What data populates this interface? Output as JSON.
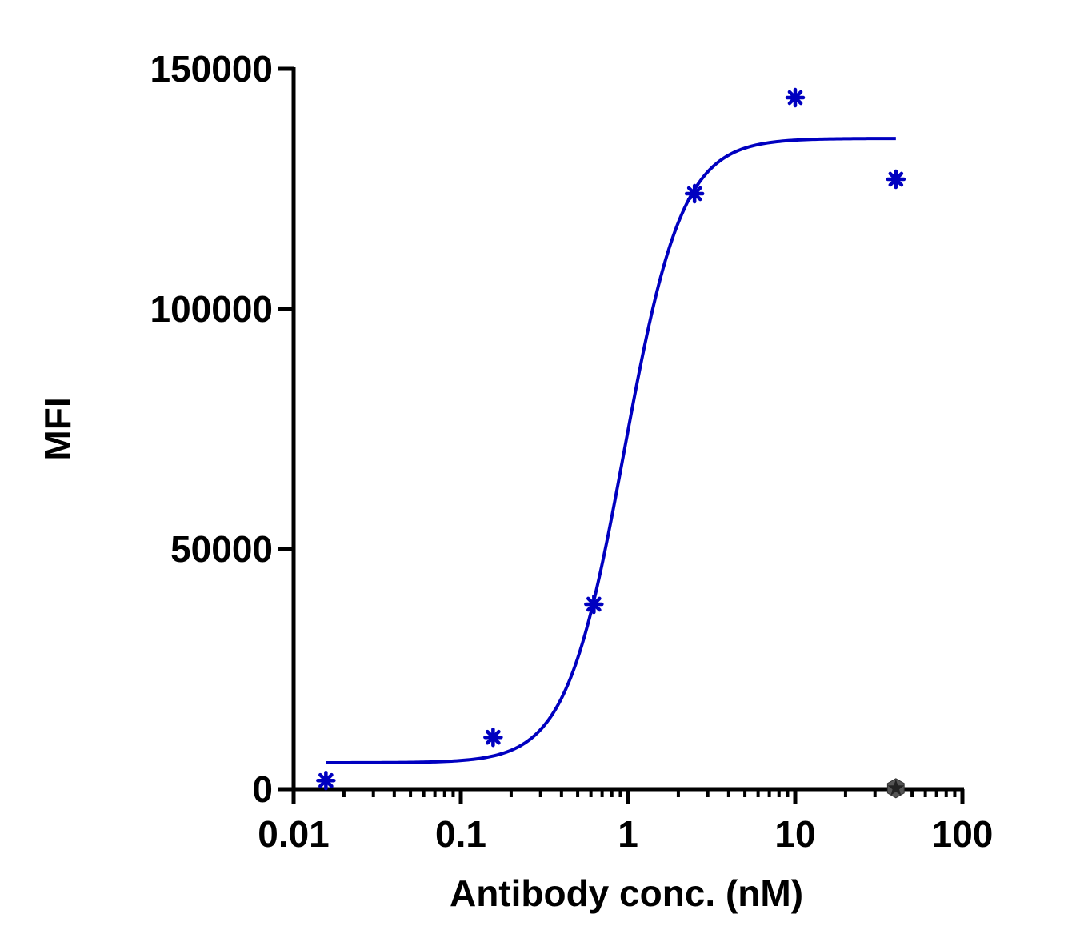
{
  "chart_data": {
    "type": "scatter",
    "title": "",
    "xlabel": "Antibody conc. (nM)",
    "ylabel": "MFI",
    "x_scale": "log",
    "xlim": [
      0.01,
      100
    ],
    "ylim": [
      0,
      150000
    ],
    "x_ticks": [
      0.01,
      0.1,
      1,
      10,
      100
    ],
    "x_tick_labels": [
      "0.01",
      "0.1",
      "1",
      "10",
      "100"
    ],
    "y_ticks": [
      0,
      50000,
      100000,
      150000
    ],
    "y_tick_labels": [
      "0",
      "50000",
      "100000",
      "150000"
    ],
    "grid": false,
    "legend": "none",
    "series": [
      {
        "color": "#0000c0",
        "marker": "asterisk",
        "points": [
          {
            "x": 0.0156,
            "y": 1800
          },
          {
            "x": 0.156,
            "y": 10800
          },
          {
            "x": 0.625,
            "y": 38500
          },
          {
            "x": 2.5,
            "y": 124000
          },
          {
            "x": 10,
            "y": 144000
          },
          {
            "x": 40,
            "y": 127000
          }
        ],
        "fit": {
          "model": "4PL",
          "bottom": 5500,
          "top": 135500,
          "ec50": 0.95,
          "hill": 2.5,
          "x_range": [
            0.0156,
            40
          ]
        }
      },
      {
        "color": "#222222",
        "marker": "hexagon-star",
        "points": [
          {
            "x": 40,
            "y": 200
          }
        ]
      }
    ]
  }
}
